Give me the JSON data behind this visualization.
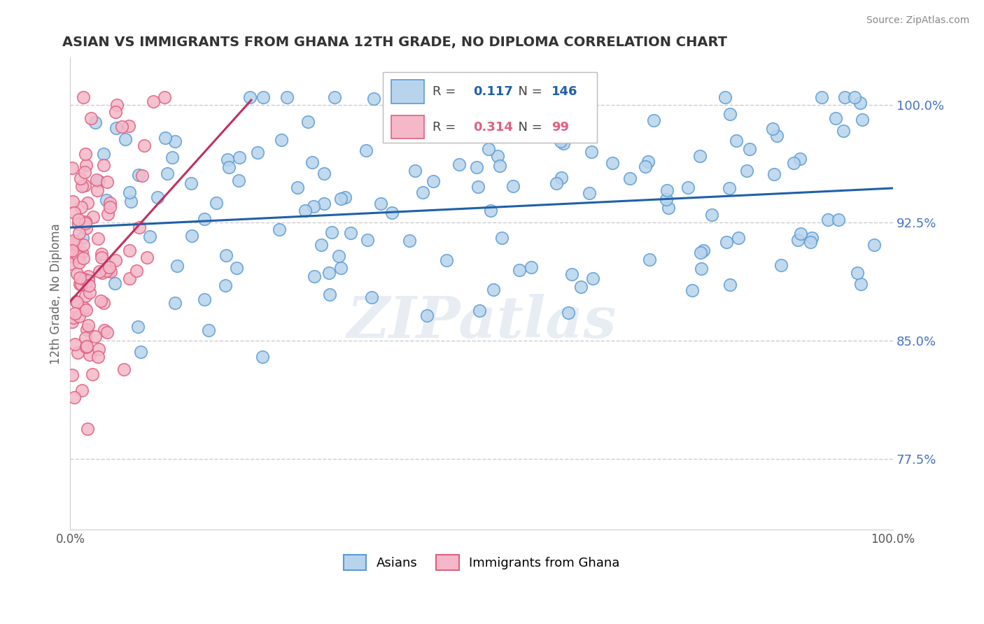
{
  "title": "ASIAN VS IMMIGRANTS FROM GHANA 12TH GRADE, NO DIPLOMA CORRELATION CHART",
  "source": "Source: ZipAtlas.com",
  "ylabel": "12th Grade, No Diploma",
  "xlim": [
    0.0,
    1.0
  ],
  "ylim": [
    0.73,
    1.03
  ],
  "yticks": [
    0.775,
    0.85,
    0.925,
    1.0
  ],
  "ytick_labels": [
    "77.5%",
    "85.0%",
    "92.5%",
    "100.0%"
  ],
  "legend_r_asian": "0.117",
  "legend_n_asian": "146",
  "legend_r_ghana": "0.314",
  "legend_n_ghana": "99",
  "asian_fill": "#b8d4ec",
  "asian_edge": "#5b9bd5",
  "ghana_fill": "#f4b8c8",
  "ghana_edge": "#e06080",
  "trend_asian_color": "#2060a8",
  "trend_ghana_color": "#c03060",
  "watermark": "ZIPatlas",
  "tick_color": "#4472c4",
  "asian_seed": 42,
  "ghana_seed": 7,
  "n_asian": 146,
  "n_ghana": 99,
  "trend_asian_x0": 0.0,
  "trend_asian_y0": 0.922,
  "trend_asian_x1": 1.0,
  "trend_asian_y1": 0.947,
  "trend_ghana_x0": 0.0,
  "trend_ghana_y0": 0.885,
  "trend_ghana_x1": 0.17,
  "trend_ghana_y1": 0.985
}
